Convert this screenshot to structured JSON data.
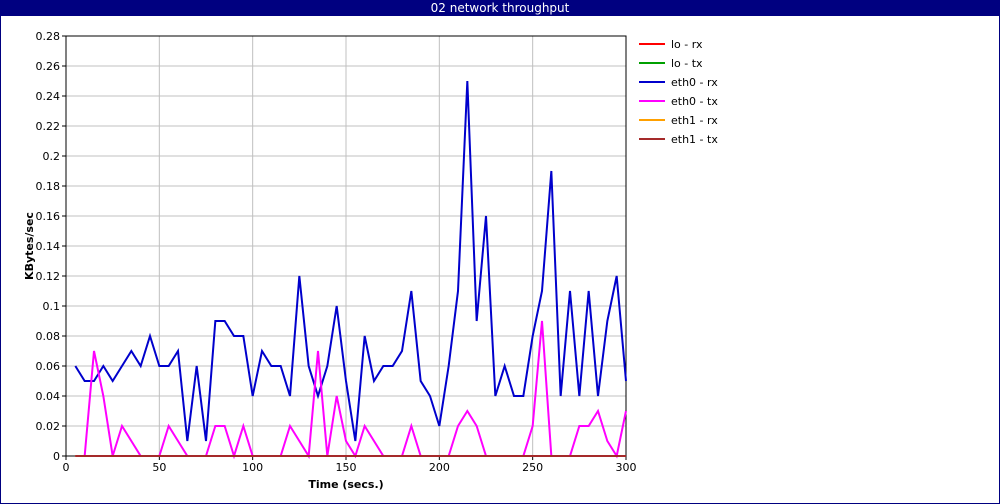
{
  "window": {
    "title": "02 network throughput"
  },
  "chart_data": {
    "type": "line",
    "title": "02 network throughput",
    "xlabel": "Time (secs.)",
    "ylabel": "KBytes/sec",
    "xlim": [
      0,
      300
    ],
    "ylim": [
      0,
      0.28
    ],
    "grid": true,
    "legend_position": "right",
    "x_ticks": [
      0,
      50,
      100,
      150,
      200,
      250,
      300
    ],
    "y_ticks": [
      0,
      0.02,
      0.04,
      0.06,
      0.08,
      0.1,
      0.12,
      0.14,
      0.16,
      0.18,
      0.2,
      0.22,
      0.24,
      0.26,
      0.28
    ],
    "x": [
      5,
      10,
      15,
      20,
      25,
      30,
      35,
      40,
      45,
      50,
      55,
      60,
      65,
      70,
      75,
      80,
      85,
      90,
      95,
      100,
      105,
      110,
      115,
      120,
      125,
      130,
      135,
      140,
      145,
      150,
      155,
      160,
      165,
      170,
      175,
      180,
      185,
      190,
      195,
      200,
      205,
      210,
      215,
      220,
      225,
      230,
      235,
      240,
      245,
      250,
      255,
      260,
      265,
      270,
      275,
      280,
      285,
      290,
      295,
      300
    ],
    "series": [
      {
        "name": "lo - rx",
        "color": "#ff0000",
        "values": [
          0,
          0,
          0,
          0,
          0,
          0,
          0,
          0,
          0,
          0,
          0,
          0,
          0,
          0,
          0,
          0,
          0,
          0,
          0,
          0,
          0,
          0,
          0,
          0,
          0,
          0,
          0,
          0,
          0,
          0,
          0,
          0,
          0,
          0,
          0,
          0,
          0,
          0,
          0,
          0,
          0,
          0,
          0,
          0,
          0,
          0,
          0,
          0,
          0,
          0,
          0,
          0,
          0,
          0,
          0,
          0,
          0,
          0,
          0,
          0
        ]
      },
      {
        "name": "lo - tx",
        "color": "#00a000",
        "values": [
          0,
          0,
          0,
          0,
          0,
          0,
          0,
          0,
          0,
          0,
          0,
          0,
          0,
          0,
          0,
          0,
          0,
          0,
          0,
          0,
          0,
          0,
          0,
          0,
          0,
          0,
          0,
          0,
          0,
          0,
          0,
          0,
          0,
          0,
          0,
          0,
          0,
          0,
          0,
          0,
          0,
          0,
          0,
          0,
          0,
          0,
          0,
          0,
          0,
          0,
          0,
          0,
          0,
          0,
          0,
          0,
          0,
          0,
          0,
          0
        ]
      },
      {
        "name": "eth0 - rx",
        "color": "#0000cc",
        "values": [
          0.06,
          0.05,
          0.05,
          0.06,
          0.05,
          0.06,
          0.07,
          0.06,
          0.08,
          0.06,
          0.06,
          0.07,
          0.01,
          0.06,
          0.01,
          0.09,
          0.09,
          0.08,
          0.08,
          0.04,
          0.07,
          0.06,
          0.06,
          0.04,
          0.12,
          0.06,
          0.04,
          0.06,
          0.1,
          0.05,
          0.01,
          0.08,
          0.05,
          0.06,
          0.06,
          0.07,
          0.11,
          0.05,
          0.04,
          0.02,
          0.06,
          0.11,
          0.25,
          0.09,
          0.16,
          0.04,
          0.06,
          0.04,
          0.04,
          0.08,
          0.11,
          0.19,
          0.04,
          0.11,
          0.04,
          0.11,
          0.04,
          0.09,
          0.12,
          0.05
        ]
      },
      {
        "name": "eth0 - tx",
        "color": "#ff00ff",
        "values": [
          0,
          0,
          0.07,
          0.04,
          0,
          0.02,
          0.01,
          0,
          0,
          0,
          0.02,
          0.01,
          0,
          0,
          0,
          0.02,
          0.02,
          0,
          0.02,
          0,
          0,
          0,
          0,
          0.02,
          0.01,
          0,
          0.07,
          0,
          0.04,
          0.01,
          0,
          0.02,
          0.01,
          0,
          0,
          0,
          0.02,
          0,
          0,
          0,
          0,
          0.02,
          0.03,
          0.02,
          0,
          0,
          0,
          0,
          0,
          0.02,
          0.09,
          0,
          0,
          0,
          0.02,
          0.02,
          0.03,
          0.01,
          0,
          0.03
        ]
      },
      {
        "name": "eth1 - rx",
        "color": "#ffa000",
        "values": [
          0,
          0,
          0,
          0,
          0,
          0,
          0,
          0,
          0,
          0,
          0,
          0,
          0,
          0,
          0,
          0,
          0,
          0,
          0,
          0,
          0,
          0,
          0,
          0,
          0,
          0,
          0,
          0,
          0,
          0,
          0,
          0,
          0,
          0,
          0,
          0,
          0,
          0,
          0,
          0,
          0,
          0,
          0,
          0,
          0,
          0,
          0,
          0,
          0,
          0,
          0,
          0,
          0,
          0,
          0,
          0,
          0,
          0,
          0,
          0
        ]
      },
      {
        "name": "eth1 - tx",
        "color": "#a52a2a",
        "values": [
          0,
          0,
          0,
          0,
          0,
          0,
          0,
          0,
          0,
          0,
          0,
          0,
          0,
          0,
          0,
          0,
          0,
          0,
          0,
          0,
          0,
          0,
          0,
          0,
          0,
          0,
          0,
          0,
          0,
          0,
          0,
          0,
          0,
          0,
          0,
          0,
          0,
          0,
          0,
          0,
          0,
          0,
          0,
          0,
          0,
          0,
          0,
          0,
          0,
          0,
          0,
          0,
          0,
          0,
          0,
          0,
          0,
          0,
          0,
          0
        ]
      }
    ]
  }
}
